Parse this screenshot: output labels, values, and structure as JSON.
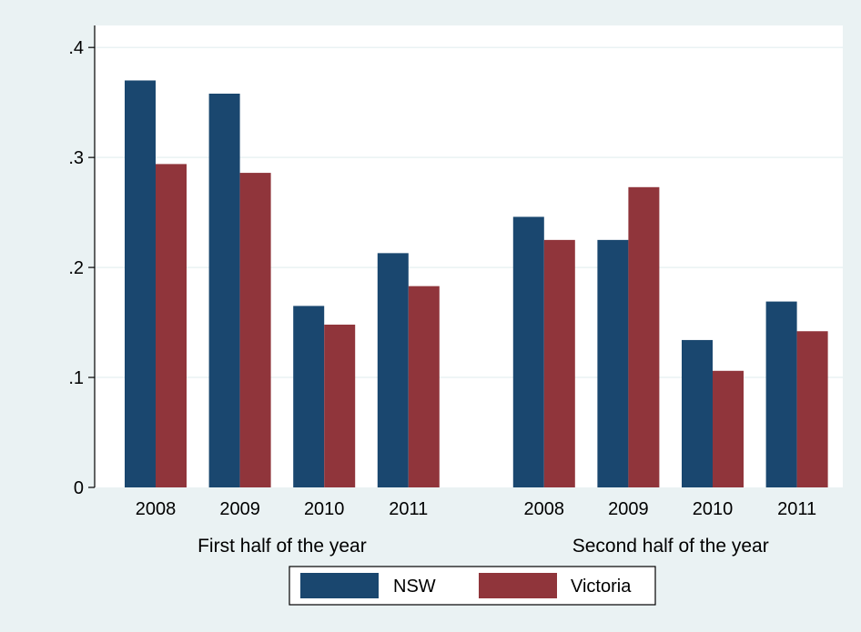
{
  "chart_data": {
    "type": "bar",
    "title": "",
    "ylabel": "",
    "xlabel": "",
    "ylim": [
      0,
      0.42
    ],
    "yticks": [
      {
        "value": 0,
        "label": "0"
      },
      {
        "value": 0.1,
        "label": ".1"
      },
      {
        "value": 0.2,
        "label": ".2"
      },
      {
        "value": 0.3,
        "label": ".3"
      },
      {
        "value": 0.4,
        "label": ".4"
      }
    ],
    "grid": true,
    "groups": [
      {
        "label": "First half of the year",
        "categories": [
          "2008",
          "2009",
          "2010",
          "2011"
        ],
        "series": [
          {
            "name": "NSW",
            "values": [
              0.37,
              0.358,
              0.165,
              0.213
            ]
          },
          {
            "name": "Victoria",
            "values": [
              0.294,
              0.286,
              0.148,
              0.183
            ]
          }
        ]
      },
      {
        "label": "Second half of the year",
        "categories": [
          "2008",
          "2009",
          "2010",
          "2011"
        ],
        "series": [
          {
            "name": "NSW",
            "values": [
              0.246,
              0.225,
              0.134,
              0.169
            ]
          },
          {
            "name": "Victoria",
            "values": [
              0.225,
              0.273,
              0.106,
              0.142
            ]
          }
        ]
      }
    ],
    "legend": {
      "position": "bottom",
      "entries": [
        {
          "label": "NSW",
          "color": "#1a476f"
        },
        {
          "label": "Victoria",
          "color": "#90353b"
        }
      ]
    },
    "colors": {
      "plot_background": "#ffffff",
      "outer_background": "#eaf2f3",
      "grid": "#eaf2f3"
    }
  }
}
